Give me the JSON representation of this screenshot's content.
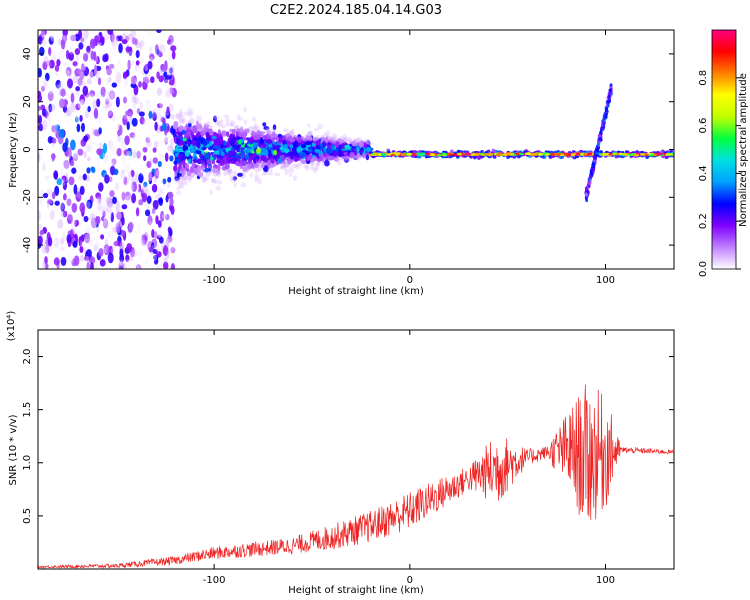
{
  "title": "C2E2.2024.185.04.14.G03",
  "chart_data": [
    {
      "type": "heatmap",
      "name": "spectrogram",
      "xlabel": "Height of straight line (km)",
      "ylabel": "Frequency (Hz)",
      "xlim": [
        -190,
        135
      ],
      "ylim": [
        -50,
        50
      ],
      "xticks": [
        -100,
        0,
        100
      ],
      "xtick_labels": [
        "-100",
        "0",
        "100"
      ],
      "yticks": [
        40,
        20,
        0,
        -20,
        -40
      ],
      "ytick_labels": [
        "40",
        "20",
        "0",
        "-20",
        "-40"
      ],
      "colorbar": {
        "label": "Normalized spectral amplitude",
        "range": [
          0,
          1
        ],
        "ticks": [
          0.0,
          0.2,
          0.4,
          0.6,
          0.8
        ],
        "tick_labels": [
          "0.0",
          "0.2",
          "0.4",
          "0.6",
          "0.8"
        ],
        "colors": [
          "#ffffff",
          "#c080ff",
          "#8000ff",
          "#0000ff",
          "#00a0ff",
          "#00e0e0",
          "#00ff40",
          "#c0ff00",
          "#ffff00",
          "#ff8000",
          "#ff0000",
          "#ff0080"
        ]
      },
      "features": {
        "noise_region_x": [
          -190,
          -120
        ],
        "spread_region_x": [
          -120,
          -20
        ],
        "spread_region_freq_halfwidth": [
          15,
          3
        ],
        "steady_line_x": [
          -20,
          135
        ],
        "steady_line_freq": -2,
        "chirp_x": [
          90,
          103
        ],
        "chirp_freq": [
          -20,
          25
        ]
      }
    },
    {
      "type": "line",
      "name": "snr",
      "xlabel": "Height of straight line (km)",
      "ylabel": "SNR (10 * v/v)",
      "y_multiplier_label": "(x10⁴)",
      "xlim": [
        -190,
        135
      ],
      "ylim": [
        0,
        2.25
      ],
      "xticks": [
        -100,
        0,
        100
      ],
      "xtick_labels": [
        "-100",
        "0",
        "100"
      ],
      "yticks": [
        0.5,
        1.0,
        1.5,
        2.0
      ],
      "ytick_labels": [
        "0.5",
        "1.0",
        "1.5",
        "2.0"
      ],
      "color": "#ee2222",
      "envelope": {
        "x": [
          -190,
          -150,
          -120,
          -100,
          -60,
          -40,
          -20,
          0,
          20,
          30,
          45,
          60,
          70,
          80,
          90,
          100,
          108,
          135
        ],
        "mean": [
          0.02,
          0.03,
          0.08,
          0.15,
          0.22,
          0.3,
          0.4,
          0.55,
          0.75,
          0.85,
          0.95,
          1.05,
          1.1,
          1.12,
          1.05,
          1.1,
          1.12,
          1.1
        ],
        "noise": [
          0.01,
          0.02,
          0.04,
          0.06,
          0.08,
          0.12,
          0.15,
          0.18,
          0.15,
          0.12,
          0.35,
          0.08,
          0.06,
          0.35,
          0.7,
          0.55,
          0.03,
          0.02
        ]
      }
    }
  ]
}
